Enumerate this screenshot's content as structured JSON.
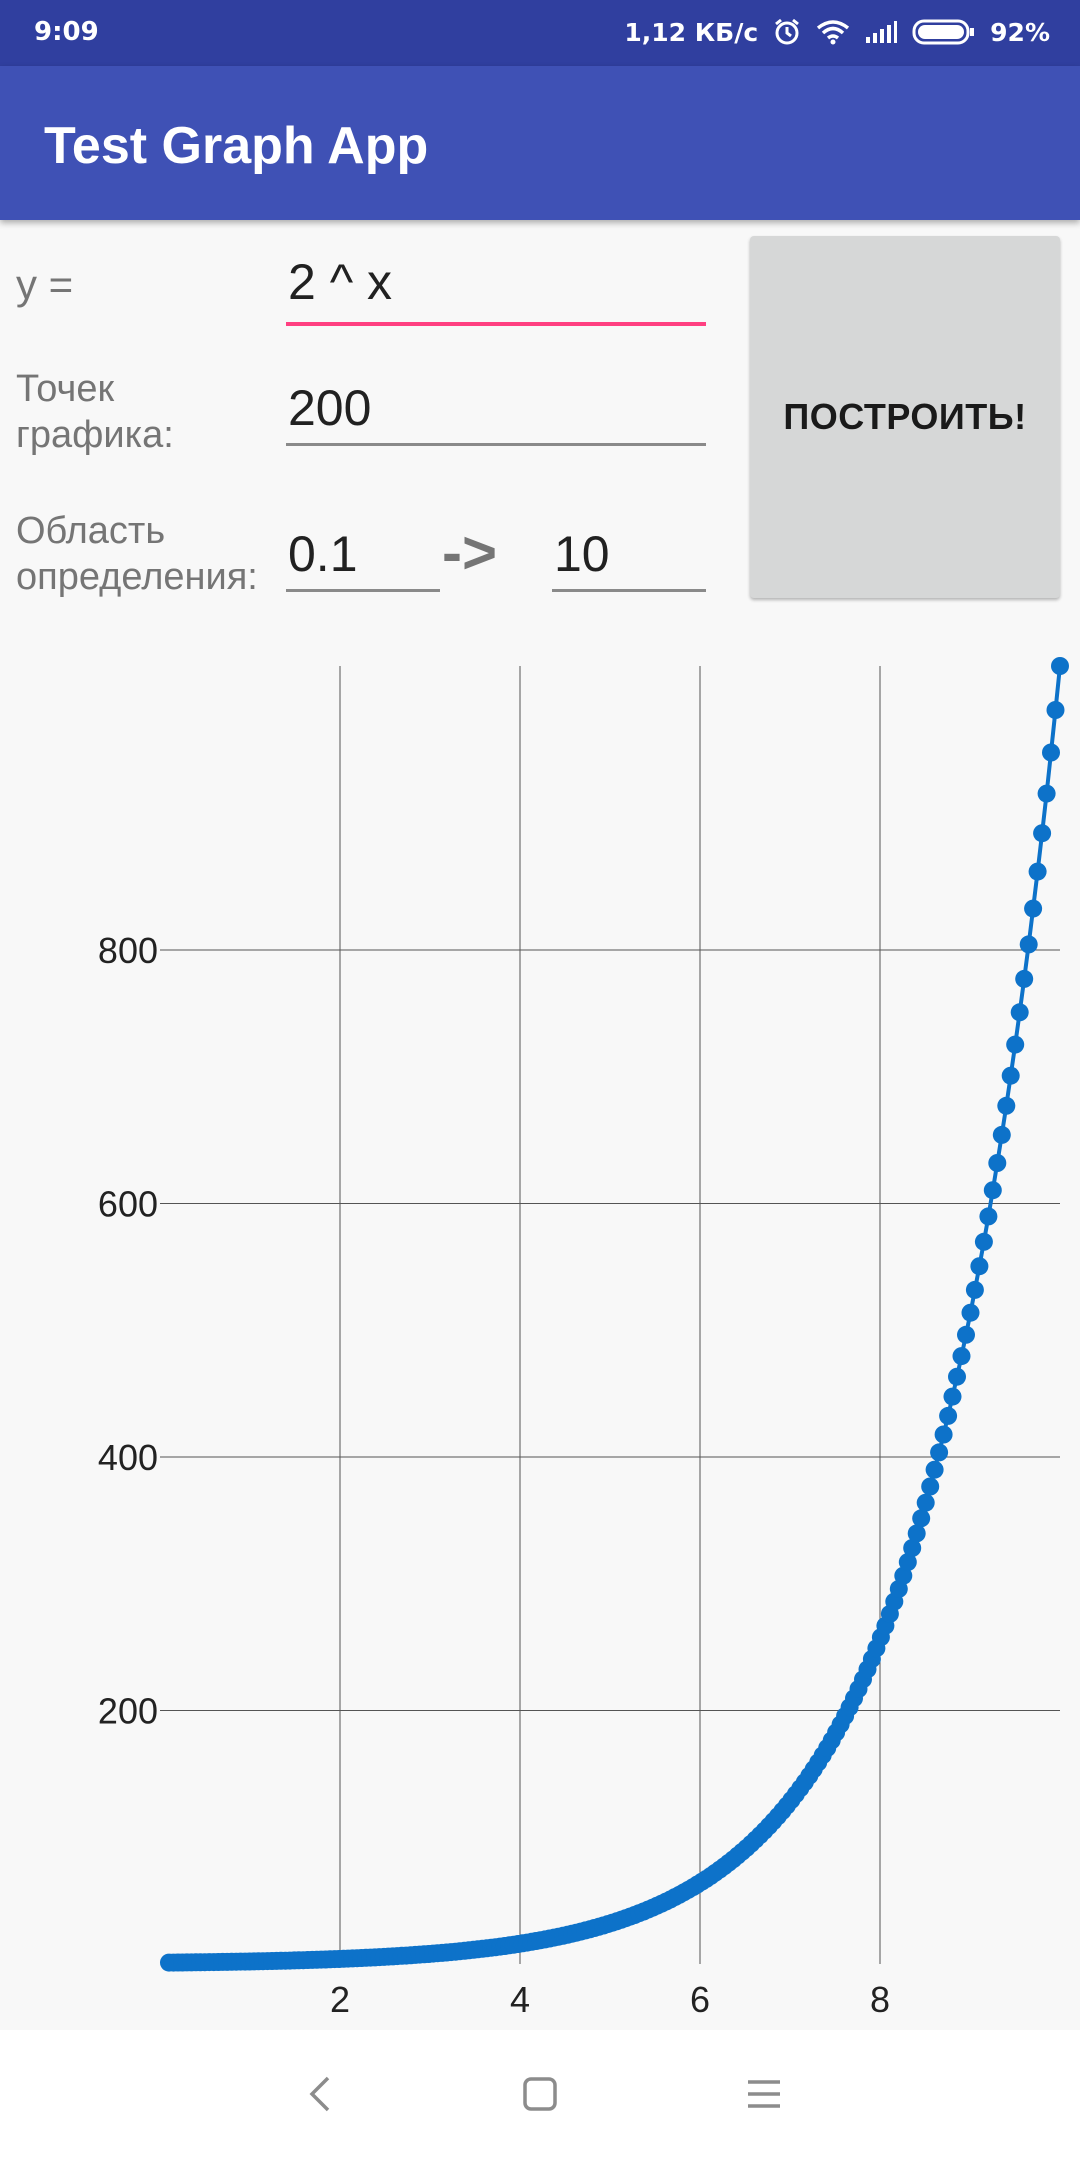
{
  "status_bar": {
    "time": "9:09",
    "network_speed": "1,12 КБ/с",
    "battery": "92%",
    "icons": [
      "alarm-icon",
      "wifi-icon",
      "signal-icon",
      "battery-icon"
    ]
  },
  "app_bar": {
    "title": "Test Graph App"
  },
  "form": {
    "y_label": "y =",
    "y_value": "2 ^ x",
    "points_label_line1": "Точек",
    "points_label_line2": "графика:",
    "points_value": "200",
    "domain_label_line1": "Область",
    "domain_label_line2": "определения:",
    "domain_from": "0.1",
    "domain_arrow": "->",
    "domain_to": "10",
    "build_button": "ПОСТРОИТЬ!"
  },
  "colors": {
    "status_bar": "#303f9f",
    "app_bar": "#3f51b5",
    "accent": "#ff4081",
    "series": "#0d72c9",
    "button": "#d6d7d7"
  },
  "chart_data": {
    "type": "line",
    "function": "2 ^ x",
    "points": 200,
    "x_range": [
      0.1,
      10
    ],
    "xlim": [
      0,
      10
    ],
    "ylim": [
      0,
      1024
    ],
    "x_ticks": [
      2,
      4,
      6,
      8
    ],
    "y_ticks": [
      200,
      400,
      600,
      800
    ],
    "markers": true,
    "grid": true,
    "series": [
      {
        "formula": "2^x",
        "x_start": 0.1,
        "x_end": 10,
        "count": 200
      }
    ]
  },
  "nav_bar": {
    "icons": [
      "back-icon",
      "home-icon",
      "menu-icon"
    ]
  }
}
